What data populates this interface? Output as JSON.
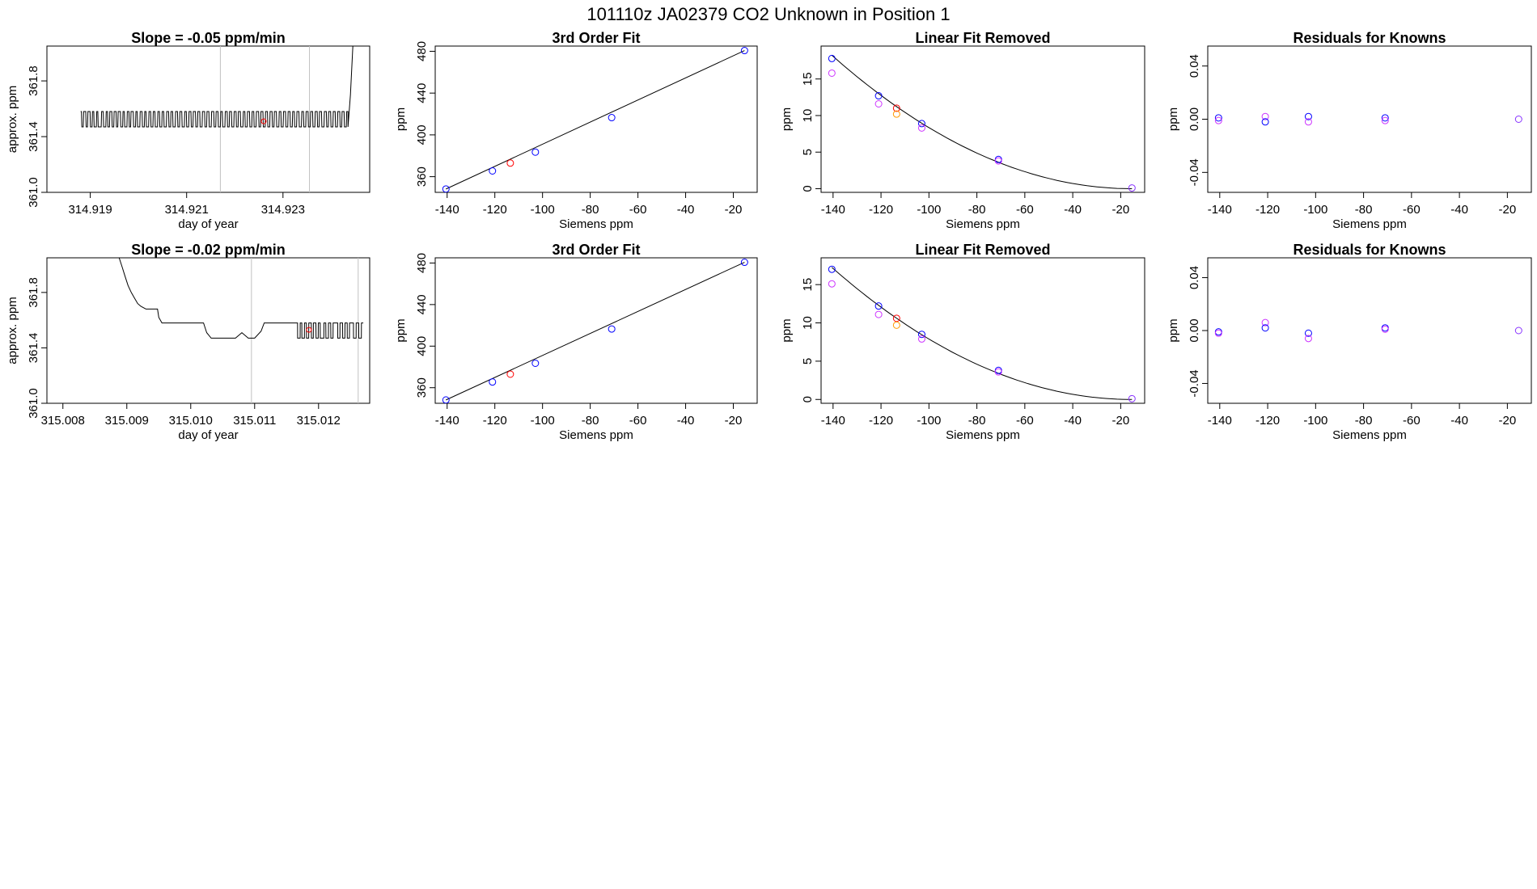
{
  "figure": {
    "title": "101110z      JA02379    CO2 Unknown in Position  1"
  },
  "colors": {
    "known": "#0000ff",
    "unknown": "#ff0000",
    "magenta": "#cc33ff",
    "orange": "#ff9900",
    "purple": "#8833ff",
    "line": "#000000",
    "marker_line": "#c0c0c0"
  },
  "chart_data": [
    {
      "type": "line",
      "title": "Slope =  -0.05  ppm/min",
      "xlabel": "day of year",
      "ylabel": "approx. ppm",
      "xlim": [
        314.9181,
        314.9248
      ],
      "ylim": [
        361.0,
        362.05
      ],
      "xticks": [
        314.919,
        314.921,
        314.923
      ],
      "xtick_labels": [
        "314.919",
        "314.921",
        "314.923"
      ],
      "yticks": [
        361.0,
        361.4,
        361.8
      ],
      "ytick_labels": [
        "361.0",
        "361.4",
        "361.8"
      ],
      "low": 361.47,
      "high": 361.58,
      "x_start": 314.9188,
      "x_end": 314.92435,
      "toggles": [
        0.3,
        0.9,
        1.8,
        2.4,
        3.3,
        4.0,
        4.6,
        5.5,
        6.0,
        7.2,
        7.9,
        8.8,
        9.4,
        10.1,
        10.9,
        11.6,
        12.4,
        13.0,
        13.9,
        14.7,
        15.3,
        16.2,
        16.9,
        17.5,
        18.4,
        19.2,
        19.8,
        20.7,
        21.5,
        22.3,
        22.9,
        23.8,
        24.5,
        25.3,
        26.0,
        26.9,
        27.6,
        28.4,
        29.1,
        30.0,
        30.8,
        31.5,
        32.2,
        33.1,
        33.9,
        34.6,
        35.4,
        36.3,
        37.0,
        37.8,
        38.6,
        39.3,
        40.2,
        40.9,
        41.7,
        42.5,
        43.4,
        44.1,
        44.9,
        45.7,
        46.6,
        47.3,
        48.1,
        48.9,
        49.6,
        50.5,
        51.3,
        52.0,
        52.8,
        53.6,
        54.4,
        55.1,
        55.9,
        56.8,
        57.5,
        58.3,
        59.1,
        59.9,
        60.6,
        61.4,
        62.3,
        63.0,
        63.8,
        64.6,
        65.4,
        66.2,
        67.0,
        67.7,
        68.5,
        69.4,
        70.1,
        70.9,
        71.7,
        72.5,
        73.3,
        74.1,
        74.8,
        75.6,
        76.4,
        77.3,
        78.0,
        78.8,
        79.6,
        80.4,
        81.2,
        82.0,
        82.8,
        83.5,
        84.3,
        85.2,
        86.0,
        86.7,
        87.5,
        88.3,
        89.1,
        89.9,
        90.7,
        91.4,
        92.2,
        93.0
      ],
      "rise": {
        "x": [
          314.92435,
          314.9244,
          314.92445
        ],
        "y": [
          361.47,
          361.7,
          362.05
        ]
      },
      "vlines": [
        314.9217,
        314.92355
      ],
      "marker": {
        "x": 314.9226,
        "y": 361.51
      }
    },
    {
      "type": "scatter",
      "title": "3rd Order Fit",
      "xlabel": "Siemens ppm",
      "ylabel": "ppm",
      "xlim": [
        -145,
        -10
      ],
      "ylim": [
        345,
        485
      ],
      "xticks": [
        -140,
        -120,
        -100,
        -80,
        -60,
        -40,
        -20
      ],
      "xtick_labels": [
        "-140",
        "-120",
        "-100",
        "-80",
        "-60",
        "-40",
        "-20"
      ],
      "yticks": [
        360,
        400,
        440,
        480
      ],
      "ytick_labels": [
        "360",
        "400",
        "440",
        "480"
      ],
      "curve": {
        "x": [
          -140.5,
          -15.3
        ],
        "y": [
          348.2,
          480.7
        ]
      },
      "points": [
        {
          "x": -140.5,
          "y": 348.2,
          "color": "known"
        },
        {
          "x": -121.0,
          "y": 365.5,
          "color": "known"
        },
        {
          "x": -113.5,
          "y": 373.0,
          "color": "unknown"
        },
        {
          "x": -103.0,
          "y": 383.5,
          "color": "known"
        },
        {
          "x": -71.0,
          "y": 416.5,
          "color": "known"
        },
        {
          "x": -15.3,
          "y": 480.7,
          "color": "known"
        }
      ]
    },
    {
      "type": "scatter",
      "title": "Linear Fit Removed",
      "xlabel": "Siemens ppm",
      "ylabel": "ppm",
      "xlim": [
        -145,
        -10
      ],
      "ylim": [
        -0.5,
        19.5
      ],
      "xticks": [
        -140,
        -120,
        -100,
        -80,
        -60,
        -40,
        -20
      ],
      "xtick_labels": [
        "-140",
        "-120",
        "-100",
        "-80",
        "-60",
        "-40",
        "-20"
      ],
      "yticks": [
        0,
        5,
        10,
        15
      ],
      "ytick_labels": [
        "0",
        "5",
        "10",
        "15"
      ],
      "curve": {
        "quad": {
          "x0": -15.3,
          "a": 0.001164,
          "xmin": -140.5,
          "xmax": -15.3
        }
      },
      "points": [
        {
          "x": -140.5,
          "y": 17.8,
          "color": "known"
        },
        {
          "x": -140.5,
          "y": 15.8,
          "color": "magenta"
        },
        {
          "x": -121.0,
          "y": 12.7,
          "color": "known"
        },
        {
          "x": -121.0,
          "y": 11.6,
          "color": "magenta"
        },
        {
          "x": -113.5,
          "y": 11.0,
          "color": "unknown"
        },
        {
          "x": -113.5,
          "y": 10.2,
          "color": "orange"
        },
        {
          "x": -103.0,
          "y": 8.9,
          "color": "known"
        },
        {
          "x": -103.0,
          "y": 8.3,
          "color": "magenta"
        },
        {
          "x": -71.0,
          "y": 4.0,
          "color": "known"
        },
        {
          "x": -71.0,
          "y": 3.8,
          "color": "magenta"
        },
        {
          "x": -15.3,
          "y": 0.1,
          "color": "purple"
        }
      ]
    },
    {
      "type": "scatter",
      "title": "Residuals for Knowns",
      "xlabel": "Siemens ppm",
      "ylabel": "ppm",
      "xlim": [
        -145,
        -10
      ],
      "ylim": [
        -0.055,
        0.055
      ],
      "xticks": [
        -140,
        -120,
        -100,
        -80,
        -60,
        -40,
        -20
      ],
      "xtick_labels": [
        "-140",
        "-120",
        "-100",
        "-80",
        "-60",
        "-40",
        "-20"
      ],
      "yticks": [
        -0.04,
        0.0,
        0.04
      ],
      "ytick_labels": [
        "-0.04",
        "0.00",
        "0.04"
      ],
      "points": [
        {
          "x": -140.5,
          "y": 0.001,
          "color": "known"
        },
        {
          "x": -140.5,
          "y": -0.001,
          "color": "magenta"
        },
        {
          "x": -121.0,
          "y": 0.002,
          "color": "magenta"
        },
        {
          "x": -121.0,
          "y": -0.002,
          "color": "known"
        },
        {
          "x": -103.0,
          "y": 0.002,
          "color": "known"
        },
        {
          "x": -103.0,
          "y": -0.002,
          "color": "magenta"
        },
        {
          "x": -71.0,
          "y": 0.001,
          "color": "known"
        },
        {
          "x": -71.0,
          "y": -0.001,
          "color": "magenta"
        },
        {
          "x": -15.3,
          "y": 0.0,
          "color": "purple"
        }
      ]
    },
    {
      "type": "line",
      "title": "Slope =  -0.02  ppm/min",
      "xlabel": "day of year",
      "ylabel": "approx. ppm",
      "xlim": [
        315.00775,
        315.0128
      ],
      "ylim": [
        361.0,
        362.05
      ],
      "xticks": [
        315.008,
        315.009,
        315.01,
        315.011,
        315.012
      ],
      "xtick_labels": [
        "315.008",
        "315.009",
        "315.010",
        "315.011",
        "315.012"
      ],
      "yticks": [
        361.0,
        361.4,
        361.8
      ],
      "ytick_labels": [
        "361.0",
        "361.4",
        "361.8"
      ],
      "path": {
        "x": [
          315.00888,
          315.00893,
          315.00897,
          315.00902,
          315.00907,
          315.00912,
          315.00917,
          315.00922,
          315.0093,
          315.00948,
          315.0095,
          315.00955,
          315.0102,
          315.01025,
          315.01032,
          315.0107,
          315.0108,
          315.0109,
          315.011,
          315.0111,
          315.01115,
          315.01165
        ],
        "y": [
          362.05,
          361.98,
          361.92,
          361.85,
          361.8,
          361.76,
          361.72,
          361.7,
          361.68,
          361.68,
          361.62,
          361.58,
          361.58,
          361.51,
          361.47,
          361.47,
          361.51,
          361.47,
          361.47,
          361.52,
          361.58,
          361.58
        ]
      },
      "toggle_segment": {
        "x_start": 315.01165,
        "x_end": 315.0127,
        "low": 361.47,
        "high": 361.58,
        "toggles": [
          0.4,
          1.2,
          1.7,
          2.5,
          3.1,
          3.8,
          4.6,
          5.2,
          6.0,
          6.7,
          7.3,
          8.4,
          9.0,
          9.8,
          10.5,
          11.2,
          12.6,
          13.3,
          14.1,
          14.8,
          15.5,
          16.2,
          17.4,
          18.2,
          19.0,
          19.8
        ]
      },
      "vlines": [
        315.01095,
        315.01262
      ],
      "marker": {
        "x": 315.01185,
        "y": 361.53
      }
    },
    {
      "type": "scatter",
      "title": "3rd Order Fit",
      "xlabel": "Siemens ppm",
      "ylabel": "ppm",
      "xlim": [
        -145,
        -10
      ],
      "ylim": [
        345,
        485
      ],
      "xticks": [
        -140,
        -120,
        -100,
        -80,
        -60,
        -40,
        -20
      ],
      "xtick_labels": [
        "-140",
        "-120",
        "-100",
        "-80",
        "-60",
        "-40",
        "-20"
      ],
      "yticks": [
        360,
        400,
        440,
        480
      ],
      "ytick_labels": [
        "360",
        "400",
        "440",
        "480"
      ],
      "curve": {
        "x": [
          -140.5,
          -15.3
        ],
        "y": [
          348.2,
          480.7
        ]
      },
      "points": [
        {
          "x": -140.5,
          "y": 348.2,
          "color": "known"
        },
        {
          "x": -121.0,
          "y": 365.5,
          "color": "known"
        },
        {
          "x": -113.5,
          "y": 373.0,
          "color": "unknown"
        },
        {
          "x": -103.0,
          "y": 383.5,
          "color": "known"
        },
        {
          "x": -71.0,
          "y": 416.5,
          "color": "known"
        },
        {
          "x": -15.3,
          "y": 480.7,
          "color": "known"
        }
      ]
    },
    {
      "type": "scatter",
      "title": "Linear Fit Removed",
      "xlabel": "Siemens ppm",
      "ylabel": "ppm",
      "xlim": [
        -145,
        -10
      ],
      "ylim": [
        -0.5,
        18.5
      ],
      "xticks": [
        -140,
        -120,
        -100,
        -80,
        -60,
        -40,
        -20
      ],
      "xtick_labels": [
        "-140",
        "-120",
        "-100",
        "-80",
        "-60",
        "-40",
        "-20"
      ],
      "yticks": [
        0,
        5,
        10,
        15
      ],
      "ytick_labels": [
        "0",
        "5",
        "10",
        "15"
      ],
      "curve": {
        "quad": {
          "x0": -15.3,
          "a": 0.0011,
          "xmin": -140.5,
          "xmax": -15.3
        }
      },
      "points": [
        {
          "x": -140.5,
          "y": 17.0,
          "color": "known"
        },
        {
          "x": -140.5,
          "y": 15.1,
          "color": "magenta"
        },
        {
          "x": -121.0,
          "y": 12.2,
          "color": "known"
        },
        {
          "x": -121.0,
          "y": 11.1,
          "color": "magenta"
        },
        {
          "x": -113.5,
          "y": 10.6,
          "color": "unknown"
        },
        {
          "x": -113.5,
          "y": 9.7,
          "color": "orange"
        },
        {
          "x": -103.0,
          "y": 8.5,
          "color": "known"
        },
        {
          "x": -103.0,
          "y": 7.9,
          "color": "magenta"
        },
        {
          "x": -71.0,
          "y": 3.8,
          "color": "known"
        },
        {
          "x": -71.0,
          "y": 3.6,
          "color": "magenta"
        },
        {
          "x": -15.3,
          "y": 0.1,
          "color": "purple"
        }
      ]
    },
    {
      "type": "scatter",
      "title": "Residuals for Knowns",
      "xlabel": "Siemens ppm",
      "ylabel": "ppm",
      "xlim": [
        -145,
        -10
      ],
      "ylim": [
        -0.055,
        0.055
      ],
      "xticks": [
        -140,
        -120,
        -100,
        -80,
        -60,
        -40,
        -20
      ],
      "xtick_labels": [
        "-140",
        "-120",
        "-100",
        "-80",
        "-60",
        "-40",
        "-20"
      ],
      "yticks": [
        -0.04,
        0.0,
        0.04
      ],
      "ytick_labels": [
        "-0.04",
        "0.00",
        "0.04"
      ],
      "points": [
        {
          "x": -140.5,
          "y": -0.001,
          "color": "known"
        },
        {
          "x": -140.5,
          "y": -0.002,
          "color": "magenta"
        },
        {
          "x": -121.0,
          "y": 0.006,
          "color": "magenta"
        },
        {
          "x": -121.0,
          "y": 0.002,
          "color": "known"
        },
        {
          "x": -103.0,
          "y": -0.002,
          "color": "known"
        },
        {
          "x": -103.0,
          "y": -0.006,
          "color": "magenta"
        },
        {
          "x": -71.0,
          "y": 0.002,
          "color": "known"
        },
        {
          "x": -71.0,
          "y": 0.001,
          "color": "magenta"
        },
        {
          "x": -15.3,
          "y": 0.0,
          "color": "purple"
        }
      ]
    }
  ]
}
